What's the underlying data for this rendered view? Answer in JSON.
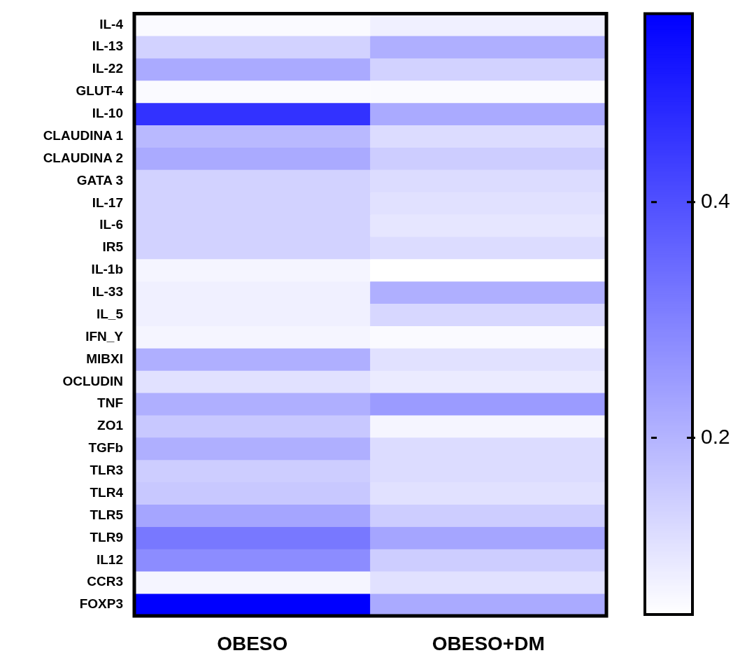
{
  "chart_data": {
    "type": "heatmap",
    "categories": [
      "OBESO",
      "OBESO+DM"
    ],
    "y_categories": [
      "IL-4",
      "IL-13",
      "IL-22",
      "GLUT-4",
      "IL-10",
      "CLAUDINA 1",
      "CLAUDINA 2",
      "GATA 3",
      "IL-17",
      "IL-6",
      "IR5",
      "IL-1b",
      "IL-33",
      "IL_5",
      "IFN_Y",
      "MIBXI",
      "OCLUDIN",
      "TNF",
      "ZO1",
      "TGFb",
      "TLR3",
      "TLR4",
      "TLR5",
      "TLR9",
      "IL12",
      "CCR3",
      "FOXP3"
    ],
    "cells": [
      [
        0.06,
        0.08
      ],
      [
        0.14,
        0.21
      ],
      [
        0.22,
        0.14
      ],
      [
        0.06,
        0.06
      ],
      [
        0.46,
        0.22
      ],
      [
        0.19,
        0.12
      ],
      [
        0.22,
        0.15
      ],
      [
        0.14,
        0.12
      ],
      [
        0.14,
        0.11
      ],
      [
        0.14,
        0.1
      ],
      [
        0.14,
        0.12
      ],
      [
        0.07,
        0.05
      ],
      [
        0.08,
        0.21
      ],
      [
        0.08,
        0.13
      ],
      [
        0.07,
        0.06
      ],
      [
        0.21,
        0.11
      ],
      [
        0.11,
        0.09
      ],
      [
        0.21,
        0.25
      ],
      [
        0.16,
        0.07
      ],
      [
        0.21,
        0.12
      ],
      [
        0.15,
        0.12
      ],
      [
        0.16,
        0.11
      ],
      [
        0.23,
        0.15
      ],
      [
        0.32,
        0.23
      ],
      [
        0.28,
        0.15
      ],
      [
        0.07,
        0.11
      ],
      [
        0.56,
        0.22
      ]
    ],
    "clim": [
      0.05,
      0.56
    ],
    "cticks": [
      0.2,
      0.4
    ]
  }
}
